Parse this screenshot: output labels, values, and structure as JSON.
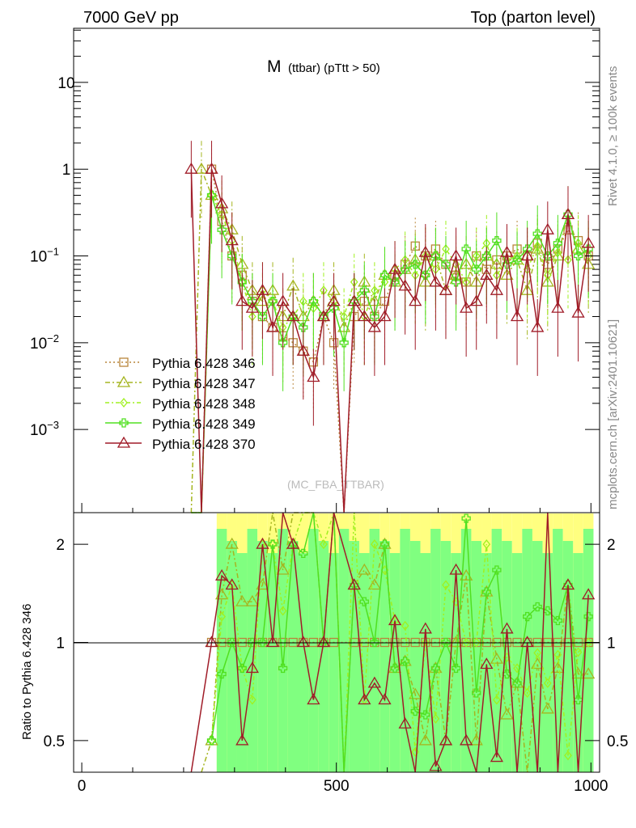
{
  "header": {
    "left": "7000 GeV pp",
    "right": "Top (parton level)"
  },
  "side": {
    "rivet": "Rivet 4.1.0, ≥ 100k events",
    "mcplots": "mcplots.cern.ch [arXiv:2401.10621]"
  },
  "watermark": "(MC_FBA_TTBAR)",
  "chart_data": {
    "type": "line",
    "title_main": "M",
    "title_sub": "(ttbar) (pTtt > 50)",
    "xlabel": "",
    "ylabel": "",
    "ratio_ylabel": "Ratio to Pythia 6.428 346",
    "xlim": [
      -16,
      1017
    ],
    "ylim": [
      0.00011,
      42
    ],
    "yscale": "log",
    "ratio_ylim": [
      0.4,
      2.5
    ],
    "x_ticks": [
      "0",
      "500",
      "1000"
    ],
    "y_ticks": [
      {
        "base": "10",
        "exp": ""
      },
      {
        "base": "1",
        "exp": ""
      },
      {
        "base": "10",
        "exp": "−1"
      },
      {
        "base": "10",
        "exp": "−2"
      },
      {
        "base": "10",
        "exp": "−3"
      }
    ],
    "ratio_ticks": [
      "0.5",
      "1",
      "2"
    ],
    "legend_position": "middle-left",
    "x": [
      215,
      235,
      255,
      275,
      295,
      315,
      335,
      355,
      375,
      395,
      415,
      435,
      455,
      475,
      495,
      515,
      535,
      555,
      575,
      595,
      615,
      635,
      655,
      675,
      695,
      715,
      735,
      755,
      775,
      795,
      815,
      835,
      855,
      875,
      895,
      915,
      935,
      955,
      975,
      995
    ],
    "series": [
      {
        "name": "Pythia 6.428 346",
        "color": "#b8863b",
        "marker": "square",
        "values": [
          0,
          0,
          1,
          0.25,
          0.1,
          0.06,
          0.03,
          0.02,
          0.015,
          0.012,
          0.01,
          0.008,
          0.006,
          0.02,
          0.01,
          0,
          0.02,
          0.03,
          0.02,
          0.03,
          0.06,
          0.08,
          0.13,
          0.1,
          0.12,
          0.08,
          0.06,
          0.05,
          0.1,
          0.07,
          0.09,
          0.1,
          0.12,
          0.1,
          0.14,
          0.08,
          0.12,
          0.2,
          0.15,
          0.1
        ]
      },
      {
        "name": "Pythia 6.428 347",
        "color": "#a5b520",
        "marker": "triangle",
        "values": [
          0,
          1,
          0.5,
          0.35,
          0.2,
          0.08,
          0.04,
          0.03,
          0.04,
          0.02,
          0.045,
          0.02,
          0.03,
          0.02,
          0.04,
          0.015,
          0.03,
          0.05,
          0.03,
          0.06,
          0.05,
          0.07,
          0.09,
          0.05,
          0.1,
          0.04,
          0.06,
          0.08,
          0.05,
          0.1,
          0.08,
          0.06,
          0.09,
          0.04,
          0.12,
          0.05,
          0.1,
          0.3,
          0.12,
          0.08
        ]
      },
      {
        "name": "Pythia 6.428 348",
        "color": "#a0f020",
        "marker": "diamond",
        "values": [
          0,
          0,
          0.5,
          0.3,
          0.15,
          0.05,
          0.02,
          0.04,
          0.03,
          0.015,
          0.02,
          0.03,
          0.025,
          0.04,
          0.03,
          0.02,
          0.05,
          0.02,
          0.04,
          0.05,
          0.07,
          0.09,
          0.06,
          0.1,
          0.07,
          0.12,
          0.08,
          0.05,
          0.1,
          0.14,
          0.06,
          0.09,
          0.1,
          0.07,
          0.13,
          0.06,
          0.11,
          0.09,
          0.14,
          0.1
        ]
      },
      {
        "name": "Pythia 6.428 349",
        "color": "#50e020",
        "marker": "cross",
        "values": [
          0,
          0,
          0.5,
          0.2,
          0.1,
          0.05,
          0.03,
          0.02,
          0.03,
          0.01,
          0.02,
          0.015,
          0.03,
          0.02,
          0.025,
          0.01,
          0.03,
          0.04,
          0.02,
          0.06,
          0.05,
          0.07,
          0.08,
          0.06,
          0.1,
          0.08,
          0.05,
          0.12,
          0.07,
          0.1,
          0.15,
          0.08,
          0.09,
          0.12,
          0.18,
          0.1,
          0.14,
          0.3,
          0.1,
          0.12
        ]
      },
      {
        "name": "Pythia 6.428 370",
        "color": "#a01c28",
        "marker": "triangle",
        "values": [
          1,
          0,
          1,
          0.4,
          0.15,
          0.03,
          0.025,
          0.04,
          0.015,
          0.03,
          0.02,
          0.008,
          0.004,
          0.02,
          0.03,
          0,
          0.03,
          0.02,
          0.015,
          0.02,
          0.07,
          0.045,
          0.03,
          0.11,
          0.05,
          0.04,
          0.1,
          0.025,
          0.03,
          0.06,
          0.04,
          0.11,
          0.02,
          0.1,
          0.015,
          0.2,
          0.025,
          0.3,
          0.022,
          0.14
        ]
      }
    ]
  }
}
